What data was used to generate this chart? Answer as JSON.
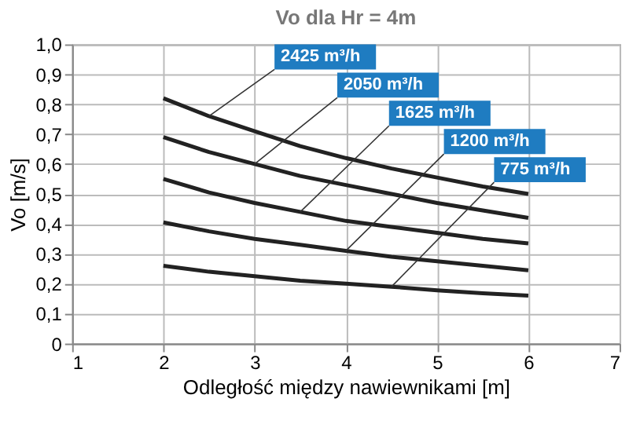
{
  "chart_data": {
    "type": "line",
    "title": "Vo dla Hr = 4m",
    "xlabel": "Odległość między nawiewnikami [m]",
    "ylabel": "Vo [m/s]",
    "x": [
      2,
      2.5,
      3,
      3.5,
      4,
      4.5,
      5,
      5.5,
      6
    ],
    "series": [
      {
        "name": "2425 m³/h",
        "color": "#222222",
        "values": [
          0.82,
          0.76,
          0.71,
          0.66,
          0.62,
          0.585,
          0.555,
          0.525,
          0.5
        ]
      },
      {
        "name": "2050 m³/h",
        "color": "#222222",
        "values": [
          0.69,
          0.64,
          0.6,
          0.56,
          0.53,
          0.5,
          0.47,
          0.445,
          0.42
        ]
      },
      {
        "name": "1625 m³/h",
        "color": "#222222",
        "values": [
          0.55,
          0.505,
          0.47,
          0.44,
          0.41,
          0.39,
          0.37,
          0.35,
          0.335
        ]
      },
      {
        "name": "1200 m³/h",
        "color": "#222222",
        "values": [
          0.405,
          0.375,
          0.35,
          0.33,
          0.31,
          0.29,
          0.275,
          0.26,
          0.245
        ]
      },
      {
        "name": "775 m³/h",
        "color": "#222222",
        "values": [
          0.26,
          0.24,
          0.225,
          0.21,
          0.2,
          0.19,
          0.178,
          0.168,
          0.16
        ]
      }
    ],
    "xlim": [
      1,
      7
    ],
    "xticks": [
      1,
      2,
      3,
      4,
      5,
      6,
      7
    ],
    "ylim": [
      0,
      1
    ],
    "yticks": [
      0,
      {
        "value": 0.1,
        "label": "0,1"
      },
      {
        "value": 0.2,
        "label": "0,2"
      },
      {
        "value": 0.3,
        "label": "0,3"
      },
      {
        "value": 0.4,
        "label": "0,4"
      },
      {
        "value": 0.5,
        "label": "0,5"
      },
      {
        "value": 0.6,
        "label": "0,6"
      },
      {
        "value": 0.7,
        "label": "0,7"
      },
      {
        "value": 0.8,
        "label": "0,8"
      },
      {
        "value": 0.9,
        "label": "0,9"
      },
      {
        "value": 1,
        "label": "1,0"
      }
    ],
    "grid": true,
    "legend": false,
    "marker": "none",
    "line_style": "solid"
  }
}
